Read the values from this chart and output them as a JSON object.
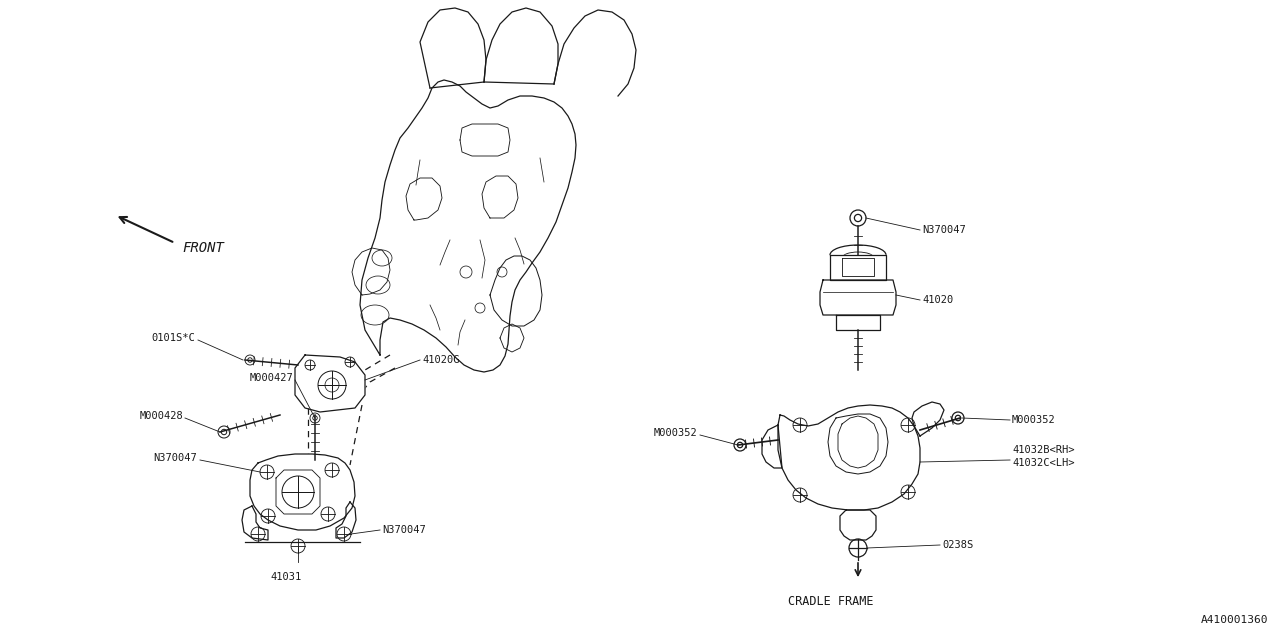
{
  "bg_color": "#ffffff",
  "line_color": "#1a1a1a",
  "fig_width": 12.8,
  "fig_height": 6.4,
  "diagram_id": "A410001360",
  "labels": {
    "front_label": "FRONT",
    "cradle_frame": "CRADLE FRAME",
    "part_41020G": "41020G",
    "part_41020": "41020",
    "part_41031": "41031",
    "part_41032B": "41032B<RH>",
    "part_41032C": "41032C<LH>",
    "part_0101SC": "0101S*C",
    "part_M000427": "M000427",
    "part_M000428": "M000428",
    "part_N370047": "N370047",
    "part_M000352": "M000352",
    "part_0238S": "0238S"
  },
  "font_size_label": 7.5,
  "font_size_id": 8,
  "lw_main": 0.9,
  "lw_thin": 0.6
}
